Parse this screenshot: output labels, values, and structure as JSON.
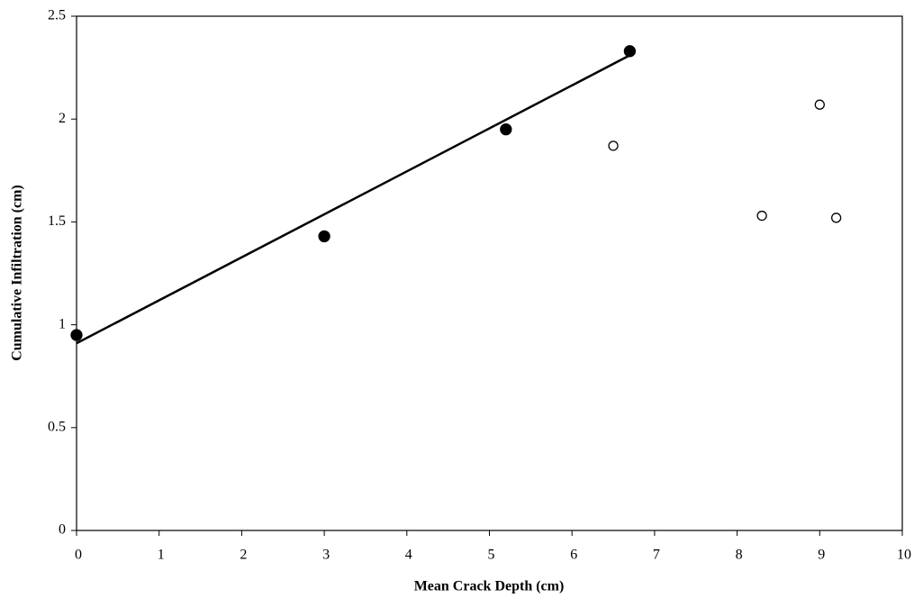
{
  "chart_data": {
    "type": "scatter",
    "x_label": "Mean Crack Depth (cm)",
    "y_label": "Cumulative Infiltration (cm)",
    "xlim": [
      0,
      10
    ],
    "xticks": [
      0,
      1,
      2,
      3,
      4,
      5,
      6,
      7,
      8,
      9,
      10
    ],
    "ylim": [
      0,
      2.5
    ],
    "yticks": [
      0,
      0.5,
      1,
      1.5,
      2,
      2.5
    ],
    "grid": false,
    "series": [
      {
        "marker": "filled",
        "color": "#000000",
        "x": [
          0,
          3,
          5.2,
          6.7
        ],
        "values": [
          0.95,
          1.43,
          1.95,
          2.33
        ]
      },
      {
        "marker": "hollow",
        "color": "#000000",
        "x": [
          6.5,
          8.3,
          9,
          9.2
        ],
        "values": [
          1.87,
          1.53,
          2.07,
          1.52
        ]
      }
    ],
    "trendline": {
      "color": "#000000",
      "x": [
        0,
        6.7
      ],
      "values": [
        0.91,
        2.31
      ]
    }
  }
}
